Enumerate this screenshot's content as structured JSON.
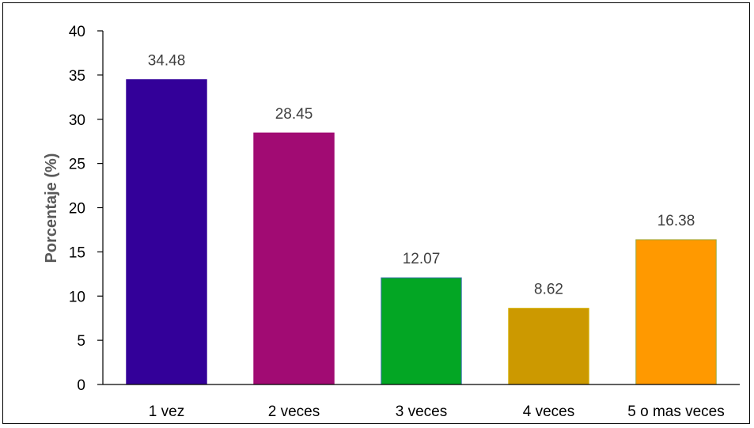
{
  "chart_data": {
    "type": "bar",
    "title": "",
    "xlabel": "",
    "ylabel": "Porcentaje (%)",
    "ylim": [
      0,
      40
    ],
    "yticks": [
      0,
      5,
      10,
      15,
      20,
      25,
      30,
      35,
      40
    ],
    "grid": false,
    "legend": "none",
    "categories": [
      "1 vez",
      "2 veces",
      "3 veces",
      "4 veces",
      "5 o mas veces"
    ],
    "values": [
      34.48,
      28.45,
      12.07,
      8.62,
      16.38
    ],
    "data_labels": [
      "34.48",
      "28.45",
      "12.07",
      "8.62",
      "16.38"
    ],
    "colors": [
      "#330099",
      "#A10B73",
      "#03A624",
      "#CC9900",
      "#FF9900"
    ],
    "border_colors": [
      "#330099",
      "#A10B73",
      "#3A6FB0",
      "#D4B000",
      "#9AA83A"
    ]
  }
}
